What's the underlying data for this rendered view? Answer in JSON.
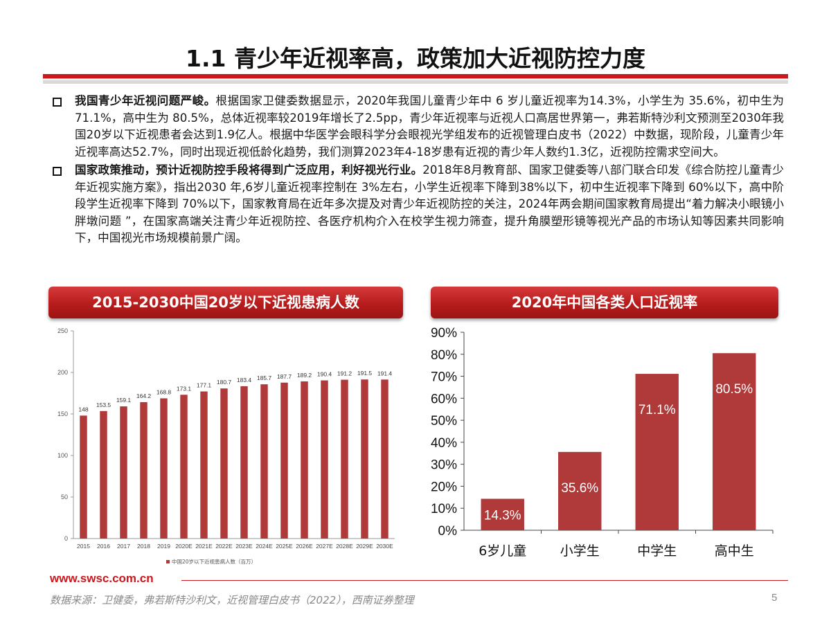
{
  "page": {
    "title": "1.1 青少年近视率高，政策加大近视防控力度",
    "page_number": "5",
    "url": "www.swsc.com.cn",
    "source": "数据来源：卫健委，弗若斯特沙利文，近视管理白皮书（2022），西南证券整理"
  },
  "bullets": [
    {
      "bold": "我国青少年近视问题严峻。",
      "text": "根据国家卫健委数据显示，2020年我国儿童青少年中 6 岁儿童近视率为14.3%，小学生为 35.6%，初中生为 71.1%，高中生为 80.5%，总体近视率较2019年增长了2.5pp，青少年近视率与近视人口高居世界第一，弗若斯特沙利文预测至2030年我国20岁以下近视患者会达到1.9亿人。根据中华医学会眼科学分会眼视光学组发布的近视管理白皮书（2022）中数据，现阶段，儿童青少年近视率高达52.7%，同时出现近视低龄化趋势，我们测算2023年4-18岁患有近视的青少年人数约1.3亿，近视防控需求空间大。"
    },
    {
      "bold": "国家政策推动，预计近视防控手段将得到广泛应用，利好视光行业。",
      "text": "2018年8月教育部、国家卫健委等八部门联合印发《综合防控儿童青少年近视实施方案》，指出2030 年,6岁儿童近视率控制在 3%左右，小学生近视率下降到38%以下，初中生近视率下降到 60%以下，高中阶段学生近视率下降到 70%以下，国家教育局在近年多次提及对青少年近视防控的关注，2024年两会期间国家教育局提出“着力解决小眼镜小胖墩问题 ”，在国家高端关注青少年近视防控、各医疗机构介入在校学生视力筛查，提升角膜塑形镜等视光产品的市场认知等因素共同影响下，中国视光市场规模前景广阔。"
    }
  ],
  "chart_data": [
    {
      "type": "bar",
      "title": "2015-2030中国20岁以下近视患病人数",
      "categories": [
        "2015",
        "2016",
        "2017",
        "2018",
        "2019",
        "2020E",
        "2021E",
        "2022E",
        "2023E",
        "2024E",
        "2025E",
        "2026E",
        "2027E",
        "2028E",
        "2029E",
        "2030E"
      ],
      "series": [
        {
          "name": "中国20岁以下近视患病人数（百万）",
          "values": [
            148,
            153.5,
            159.1,
            164.2,
            168.8,
            173.1,
            177.1,
            180.7,
            183.4,
            185.7,
            187.7,
            189.2,
            190.4,
            191.2,
            191.5,
            191.4
          ]
        }
      ],
      "data_labels": [
        "148",
        "153.5",
        "159.1",
        "164.2",
        "168.8",
        "173.1",
        "177.1",
        "180.7",
        "183.4",
        "185.7",
        "187.7",
        "189.2",
        "190.4",
        "191.2",
        "191.5",
        "191.4"
      ],
      "yticks": [
        "0",
        "50",
        "100",
        "150",
        "200",
        "250"
      ],
      "ylim": [
        0,
        250
      ],
      "legend": "bottom",
      "grid": false,
      "color": "#b03a3a"
    },
    {
      "type": "bar",
      "title": "2020年中国各类人口近视率",
      "categories": [
        "6岁儿童",
        "小学生",
        "中学生",
        "高中生"
      ],
      "values": [
        14.3,
        35.6,
        71.1,
        80.5
      ],
      "data_labels": [
        "14.3%",
        "35.6%",
        "71.1%",
        "80.5%"
      ],
      "yticks": [
        "0%",
        "10%",
        "20%",
        "30%",
        "40%",
        "50%",
        "60%",
        "70%",
        "80%",
        "90%"
      ],
      "ylim": [
        0,
        90
      ],
      "grid": false,
      "color": "#b03a3a"
    }
  ]
}
